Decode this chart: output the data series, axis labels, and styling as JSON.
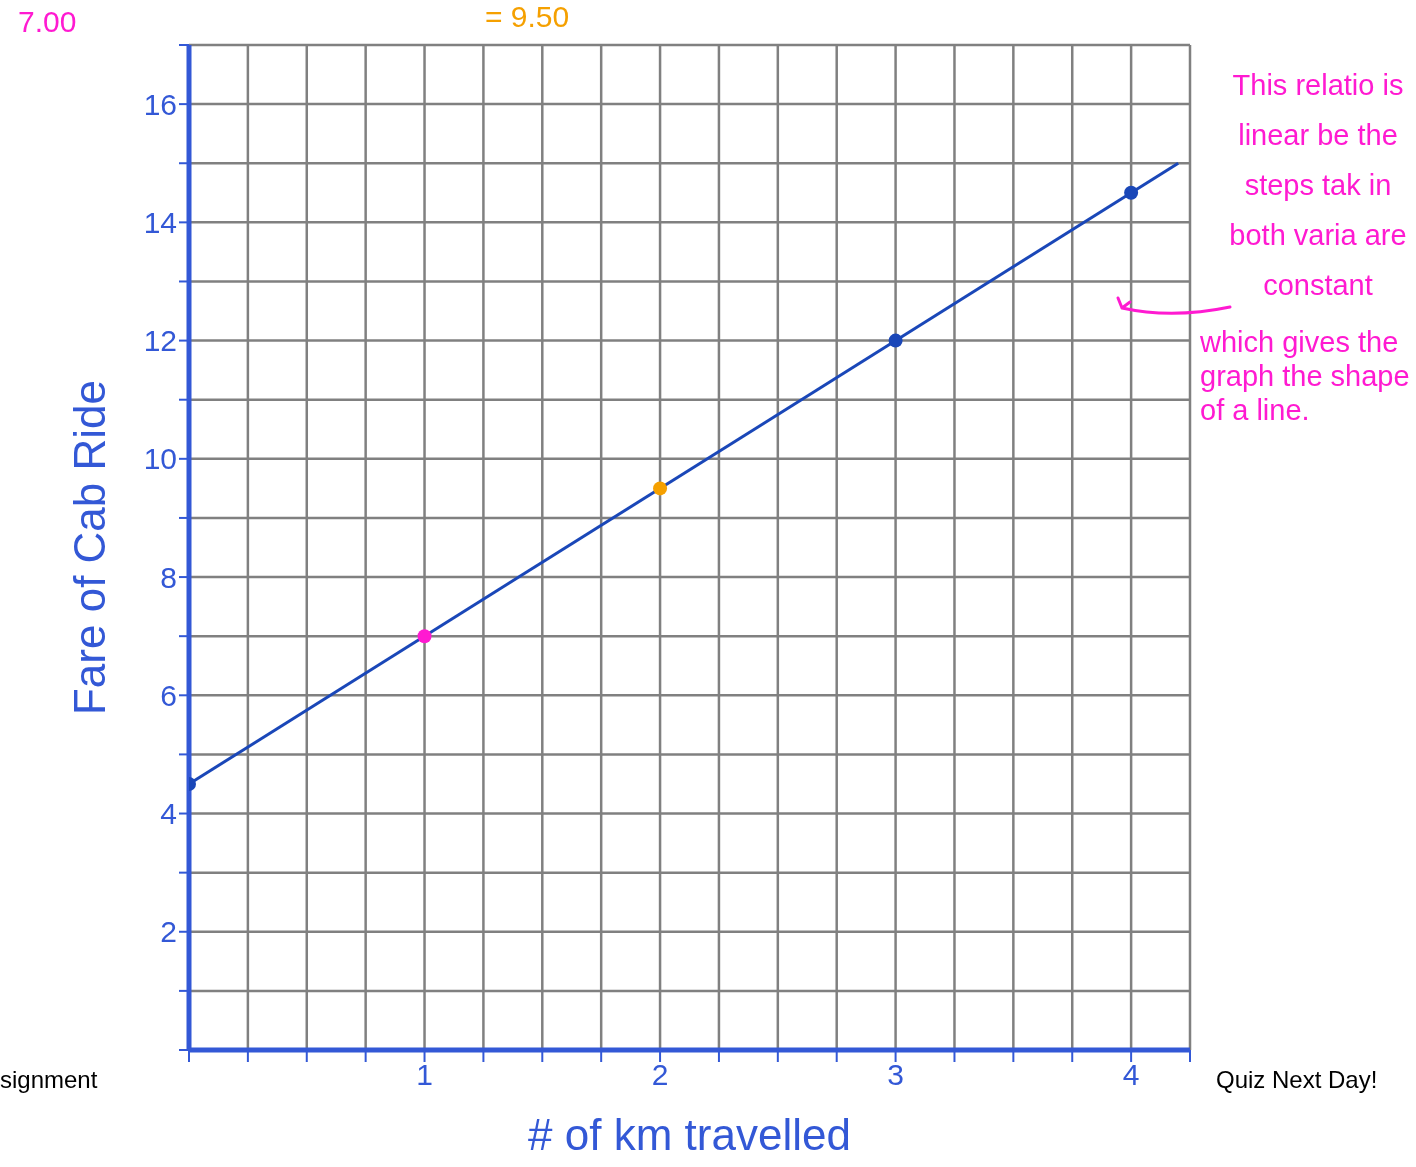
{
  "chart_data": {
    "type": "scatter",
    "xlabel": "# of km travelled",
    "ylabel": "Fare of Cab Ride",
    "xlim": [
      0,
      4.25
    ],
    "ylim": [
      0,
      17
    ],
    "xticks": [
      {
        "value": 0,
        "label": null
      },
      {
        "value": 0.25,
        "label": null
      },
      {
        "value": 0.5,
        "label": null
      },
      {
        "value": 0.75,
        "label": null
      },
      1,
      {
        "value": 1.25,
        "label": null
      },
      {
        "value": 1.5,
        "label": null
      },
      {
        "value": 1.75,
        "label": null
      },
      2,
      {
        "value": 2.25,
        "label": null
      },
      {
        "value": 2.5,
        "label": null
      },
      {
        "value": 2.75,
        "label": null
      },
      3,
      {
        "value": 3.25,
        "label": null
      },
      {
        "value": 3.5,
        "label": null
      },
      {
        "value": 3.75,
        "label": null
      },
      4,
      {
        "value": 4.25,
        "label": null
      }
    ],
    "yticks": [
      {
        "value": 0,
        "label": null
      },
      {
        "value": 1,
        "label": null
      },
      2,
      {
        "value": 3,
        "label": null
      },
      4,
      {
        "value": 5,
        "label": null
      },
      6,
      {
        "value": 7,
        "label": null
      },
      8,
      {
        "value": 9,
        "label": null
      },
      10,
      {
        "value": 11,
        "label": null
      },
      12,
      {
        "value": 13,
        "label": null
      },
      14,
      {
        "value": 15,
        "label": null
      },
      16,
      {
        "value": 17,
        "label": null
      }
    ],
    "grid": true,
    "marker": "circle",
    "series": [
      {
        "type": "line",
        "color": "#1a47b8",
        "x": [
          0,
          4.2
        ],
        "values": [
          4.5,
          15.0
        ],
        "marker": "none"
      },
      {
        "color": "#1a47b8",
        "x": [
          0,
          1,
          2,
          3,
          4
        ],
        "values": [
          4.5,
          7,
          9.5,
          12,
          14.5
        ],
        "colors": [
          "#1a47b8",
          "#ff1ad1",
          "#f5a000",
          "#1a47b8",
          "#1a47b8"
        ]
      }
    ],
    "annotations": [
      "7.00",
      "= 9.50",
      "signment",
      "Quiz Next Day!",
      "This relatio is linear be the steps tak in both varia are constant",
      "which gives the graph the shape of a line."
    ]
  }
}
